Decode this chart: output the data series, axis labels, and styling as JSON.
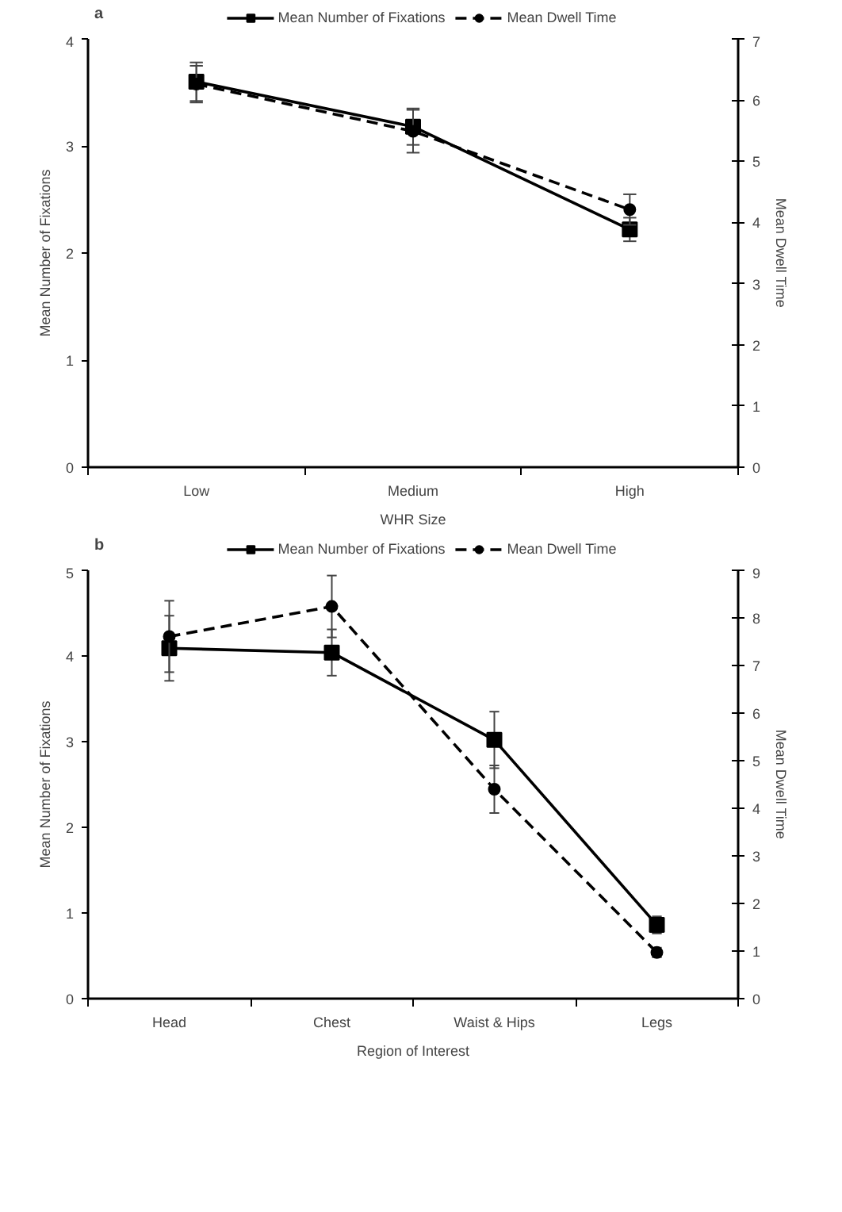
{
  "chart_data": [
    {
      "type": "line",
      "annotations": [
        "a"
      ],
      "categories": [
        "Low",
        "Medium",
        "High"
      ],
      "xlabel": "WHR Size",
      "ylabel": "Mean Number of Fixations",
      "y2label": "Mean Dwell Time",
      "ylim": [
        0,
        4
      ],
      "yticks": [
        0,
        1,
        2,
        3,
        4
      ],
      "y2lim": [
        0,
        7
      ],
      "y2ticks": [
        0,
        1,
        2,
        3,
        4,
        5,
        6,
        7
      ],
      "grid": false,
      "legend": "top",
      "series": [
        {
          "name": "Mean Number of Fixations",
          "color": "#000000",
          "marker": "square",
          "line_style": "solid",
          "values": [
            3.6,
            3.18,
            2.22
          ],
          "errors": [
            0.18,
            0.17,
            0.11
          ]
        },
        {
          "name": "Mean Dwell Time",
          "color": "#000000",
          "marker": "circle",
          "line_style": "dashed",
          "axis": "y2",
          "values": [
            6.26,
            5.49,
            4.21
          ],
          "errors": [
            0.3,
            0.35,
            0.25
          ]
        }
      ]
    },
    {
      "type": "line",
      "annotations": [
        "b"
      ],
      "categories": [
        "Head",
        "Chest",
        "Waist & Hips",
        "Legs"
      ],
      "xlabel": "Region of Interest",
      "ylabel": "Mean Number of Fixations",
      "y2label": "Mean Dwell Time",
      "ylim": [
        0,
        5
      ],
      "yticks": [
        0,
        1,
        2,
        3,
        4,
        5
      ],
      "y2lim": [
        0,
        9
      ],
      "y2ticks": [
        0,
        1,
        2,
        3,
        4,
        5,
        6,
        7,
        8,
        9
      ],
      "grid": false,
      "legend": "top",
      "series": [
        {
          "name": "Mean Number of Fixations",
          "color": "#000000",
          "marker": "square",
          "line_style": "solid",
          "values": [
            4.09,
            4.04,
            3.02,
            0.86
          ],
          "errors": [
            0.38,
            0.27,
            0.33,
            0.1
          ]
        },
        {
          "name": "Mean Dwell Time",
          "color": "#000000",
          "marker": "circle",
          "line_style": "dashed",
          "axis": "y2",
          "values": [
            7.61,
            8.24,
            4.4,
            0.97
          ],
          "errors": [
            0.75,
            0.65,
            0.5,
            0.1
          ]
        }
      ]
    }
  ]
}
